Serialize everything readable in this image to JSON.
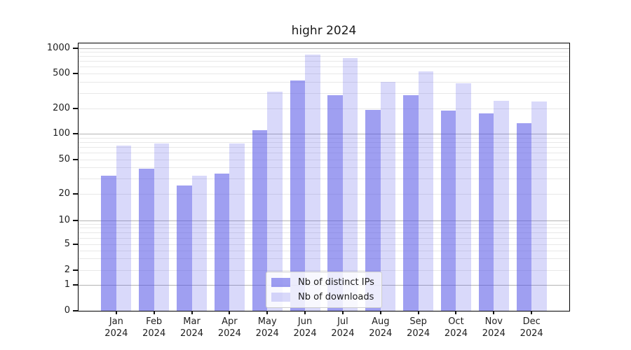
{
  "title": "highr 2024",
  "chart_data": {
    "type": "bar",
    "title": "highr 2024",
    "categories": [
      "Jan 2024",
      "Feb 2024",
      "Mar 2024",
      "Apr 2024",
      "May 2024",
      "Jun 2024",
      "Jul 2024",
      "Aug 2024",
      "Sep 2024",
      "Oct 2024",
      "Nov 2024",
      "Dec 2024"
    ],
    "x_tick_months": [
      "Jan",
      "Feb",
      "Mar",
      "Apr",
      "May",
      "Jun",
      "Jul",
      "Aug",
      "Sep",
      "Oct",
      "Nov",
      "Dec"
    ],
    "x_tick_year": "2024",
    "series": [
      {
        "name": "Nb of distinct IPs",
        "color": "rgba(80,80,230,0.55)",
        "solid_color": "#9f9ff1",
        "values": [
          32,
          39,
          25,
          34,
          110,
          418,
          280,
          190,
          280,
          188,
          175,
          132
        ]
      },
      {
        "name": "Nb of downloads",
        "color": "rgba(80,80,230,0.22)",
        "solid_color": "#d8d8f9",
        "values": [
          72,
          77,
          32,
          76,
          308,
          840,
          765,
          400,
          530,
          384,
          242,
          239
        ]
      }
    ],
    "yscale": "symlog",
    "yticks": [
      0,
      1,
      2,
      5,
      10,
      20,
      50,
      100,
      200,
      500,
      1000
    ],
    "ytick_labels": [
      "0",
      "1",
      "2",
      "5",
      "10",
      "20",
      "50",
      "100",
      "200",
      "500",
      "1000"
    ],
    "ylim": [
      0,
      1130
    ],
    "grid": "horizontal major (1,10,100,1000) + minor (2-9 per decade)",
    "legend_position": "lower center",
    "xlabel": "",
    "ylabel": ""
  },
  "colors": {
    "grid_major": "#b4b4b4",
    "grid_minor": "#e8e8e8",
    "spine": "#000000",
    "background": "#ffffff"
  },
  "legend": {
    "items": [
      {
        "label": "Nb of distinct IPs"
      },
      {
        "label": "Nb of downloads"
      }
    ]
  }
}
